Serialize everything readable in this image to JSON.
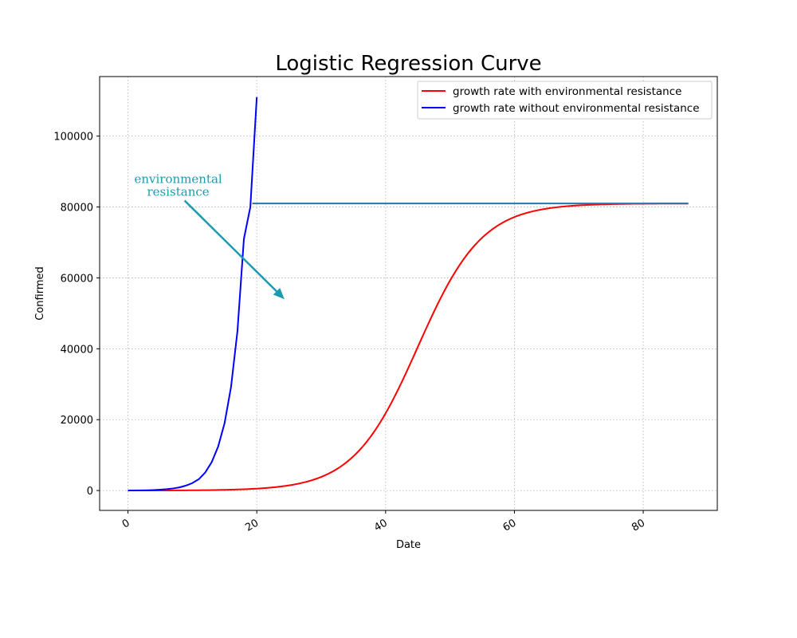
{
  "chart_data": {
    "type": "line",
    "title": "Logistic Regression Curve",
    "xlabel": "Date",
    "ylabel": "Confirmed",
    "xlim": [
      -4.4,
      91.5
    ],
    "ylim": [
      -5600,
      116800
    ],
    "xticks": [
      0,
      20,
      40,
      60,
      80
    ],
    "yticks": [
      0,
      20000,
      40000,
      60000,
      80000,
      100000
    ],
    "grid": true,
    "legend_position": "top-right",
    "colors": {
      "red": "#ff0000",
      "blue": "#0000ff",
      "hline": "#1f77b4",
      "annotation": "#1a9bb0"
    },
    "series": [
      {
        "name": "growth rate with environmental resistance",
        "color": "#ff0000",
        "kind": "logistic",
        "K": 81000,
        "P0": 10,
        "r": 0.2,
        "x_range": [
          0,
          87
        ]
      },
      {
        "name": "growth rate without environmental resistance",
        "color": "#0000ff",
        "x": [
          0,
          1,
          2,
          3,
          4,
          5,
          6,
          7,
          8,
          9,
          10,
          11,
          12,
          13,
          14,
          15,
          16,
          17,
          18,
          19,
          20
        ],
        "y": [
          15,
          30,
          50,
          90,
          150,
          250,
          380,
          600,
          900,
          1400,
          2100,
          3200,
          5100,
          8000,
          12400,
          19000,
          29200,
          45000,
          71000,
          80000,
          111000
        ]
      }
    ],
    "hline": {
      "y": 81000,
      "x_start": 19.3,
      "x_end": 87,
      "color": "#1f77b4"
    },
    "annotation": {
      "text_lines": [
        "environmental",
        "resistance"
      ],
      "text_xy": [
        7.8,
        85000
      ],
      "arrow_start": [
        8.8,
        81800
      ],
      "arrow_end": [
        24.3,
        54000
      ]
    }
  }
}
